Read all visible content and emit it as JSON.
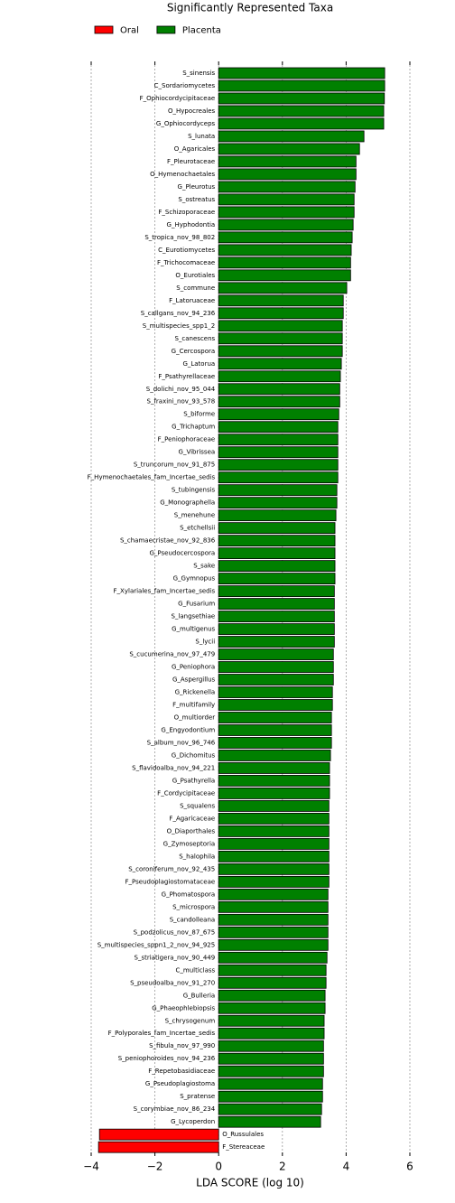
{
  "chart_data": {
    "type": "barh",
    "title": "Significantly Represented Taxa",
    "xlabel": "LDA SCORE (log 10)",
    "categories": [
      "S_sinensis",
      "C_Sordariomycetes",
      "F_Ophiocordycipitaceae",
      "O_Hypocreales",
      "G_Ophiocordyceps",
      "S_lunata",
      "O_Agaricales",
      "F_Pleurotaceae",
      "O_Hymenochaetales",
      "G_Pleurotus",
      "S_ostreatus",
      "F_Schizoporaceae",
      "G_Hyphodontia",
      "S_tropica_nov_98_802",
      "C_Eurotiomycetes",
      "F_Trichocomaceae",
      "O_Eurotiales",
      "S_commune",
      "F_Latoruaceae",
      "S_callgans_nov_94_236",
      "S_multispecies_spp1_2",
      "S_canescens",
      "G_Cercospora",
      "G_Latorua",
      "F_Psathyrellaceae",
      "S_dolichi_nov_95_044",
      "S_fraxini_nov_93_578",
      "S_biforme",
      "G_Trichaptum",
      "F_Peniophoraceae",
      "G_Vibrissea",
      "S_truncorum_nov_91_875",
      "F_Hymenochaetales_fam_Incertae_sedis",
      "S_tubingensis",
      "G_Monographella",
      "S_menehune",
      "S_etchellsii",
      "S_chamaecristae_nov_92_836",
      "G_Pseudocercospora",
      "S_sake",
      "G_Gymnopus",
      "F_Xylariales_fam_Incertae_sedis",
      "G_Fusarium",
      "S_langsethiae",
      "G_multigenus",
      "S_lycii",
      "S_cucumerina_nov_97_479",
      "G_Peniophora",
      "G_Aspergillus",
      "G_Rickenella",
      "F_multifamily",
      "O_multiorder",
      "G_Engyodontium",
      "S_album_nov_96_746",
      "G_Dichomitus",
      "S_flavidoalba_nov_94_221",
      "G_Psathyrella",
      "F_Cordycipitaceae",
      "S_squalens",
      "F_Agaricaceae",
      "O_Diaporthales",
      "G_Zymoseptoria",
      "S_halophila",
      "S_coroniferum_nov_92_435",
      "F_Pseudoplagiostomataceae",
      "G_Phomatospora",
      "S_microspora",
      "S_candolleana",
      "S_podzolicus_nov_87_675",
      "S_multispecies_sppn1_2_nov_94_925",
      "S_striatigera_nov_90_449",
      "C_multiclass",
      "S_pseudoalba_nov_91_270",
      "G_Bulleria",
      "G_Phaeophlebiopsis",
      "S_chrysogenum",
      "F_Polyporales_fam_Incertae_sedis",
      "S_fibula_nov_97_990",
      "S_peniophoroides_nov_94_236",
      "F_Repetobasidiaceae",
      "G_Pseudoplagiostoma",
      "S_pratense",
      "S_corymbiae_nov_86_234",
      "G_Lycoperdon",
      "O_Russulales",
      "F_Stereaceae"
    ],
    "series": [
      {
        "name": "Oral",
        "color": "#ff0000",
        "values": [
          null,
          null,
          null,
          null,
          null,
          null,
          null,
          null,
          null,
          null,
          null,
          null,
          null,
          null,
          null,
          null,
          null,
          null,
          null,
          null,
          null,
          null,
          null,
          null,
          null,
          null,
          null,
          null,
          null,
          null,
          null,
          null,
          null,
          null,
          null,
          null,
          null,
          null,
          null,
          null,
          null,
          null,
          null,
          null,
          null,
          null,
          null,
          null,
          null,
          null,
          null,
          null,
          null,
          null,
          null,
          null,
          null,
          null,
          null,
          null,
          null,
          null,
          null,
          null,
          null,
          null,
          null,
          null,
          null,
          null,
          null,
          null,
          null,
          null,
          null,
          null,
          null,
          null,
          null,
          null,
          null,
          null,
          null,
          null,
          -3.74,
          -3.77
        ]
      },
      {
        "name": "Placenta",
        "color": "#008000",
        "values": [
          5.21,
          5.21,
          5.2,
          5.18,
          5.18,
          4.56,
          4.42,
          4.31,
          4.31,
          4.28,
          4.25,
          4.25,
          4.22,
          4.19,
          4.16,
          4.14,
          4.14,
          4.02,
          3.91,
          3.91,
          3.88,
          3.88,
          3.88,
          3.85,
          3.82,
          3.8,
          3.8,
          3.77,
          3.74,
          3.74,
          3.74,
          3.74,
          3.74,
          3.71,
          3.71,
          3.68,
          3.65,
          3.65,
          3.65,
          3.65,
          3.65,
          3.63,
          3.63,
          3.63,
          3.63,
          3.63,
          3.6,
          3.6,
          3.6,
          3.57,
          3.57,
          3.54,
          3.54,
          3.54,
          3.51,
          3.48,
          3.48,
          3.48,
          3.46,
          3.46,
          3.46,
          3.46,
          3.46,
          3.46,
          3.46,
          3.43,
          3.43,
          3.43,
          3.43,
          3.43,
          3.4,
          3.37,
          3.37,
          3.34,
          3.34,
          3.31,
          3.31,
          3.29,
          3.29,
          3.29,
          3.26,
          3.26,
          3.23,
          3.2,
          null,
          null
        ]
      }
    ],
    "xlim": [
      -4,
      6
    ],
    "xticks": [
      {
        "value": -4,
        "label": "−4"
      },
      {
        "value": -2,
        "label": "−2"
      },
      0,
      2,
      4,
      6
    ],
    "grid": true,
    "legend": "top left"
  }
}
